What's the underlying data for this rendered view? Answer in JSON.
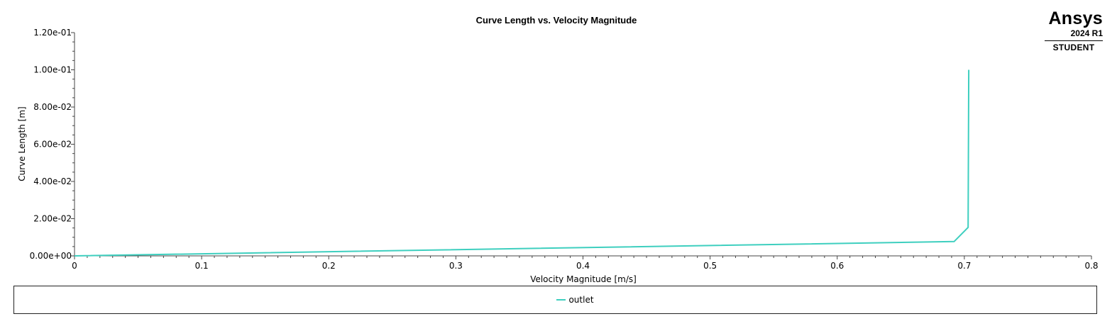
{
  "logo": {
    "brand": "Ansys",
    "version": "2024 R1",
    "edition": "STUDENT"
  },
  "chart_data": {
    "type": "line",
    "title": "Curve Length vs. Velocity Magnitude",
    "xlabel": "Velocity Magnitude [m/s]",
    "ylabel": "Curve Length [m]",
    "xlim": [
      0,
      0.8
    ],
    "ylim": [
      0,
      0.12
    ],
    "x_ticks": [
      0,
      0.1,
      0.2,
      0.3,
      0.4,
      0.5,
      0.6,
      0.7,
      0.8
    ],
    "x_tick_labels": [
      "0",
      "0.1",
      "0.2",
      "0.3",
      "0.4",
      "0.5",
      "0.6",
      "0.7",
      "0.8"
    ],
    "y_ticks": [
      0,
      0.02,
      0.04,
      0.06,
      0.08,
      0.1,
      0.12
    ],
    "y_tick_labels": [
      "0.00e+00",
      "2.00e-02",
      "4.00e-02",
      "6.00e-02",
      "8.00e-02",
      "1.00e-01",
      "1.20e-01"
    ],
    "grid": false,
    "legend_position": "bottom",
    "series": [
      {
        "name": "outlet",
        "color": "#3ecfbf",
        "points": [
          [
            0,
            0
          ],
          [
            0.692,
            0.0077
          ],
          [
            0.703,
            0.0153
          ],
          [
            0.7035,
            0.1
          ]
        ]
      }
    ]
  }
}
